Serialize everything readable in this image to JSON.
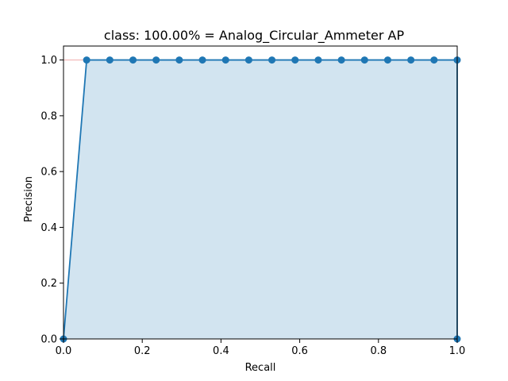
{
  "chart_data": {
    "type": "area",
    "title": "class: 100.00% = Analog_Circular_Ammeter AP",
    "xlabel": "Recall",
    "ylabel": "Precision",
    "xlim": [
      0.0,
      1.0
    ],
    "ylim": [
      0.0,
      1.05
    ],
    "xticks": [
      "0.0",
      "0.2",
      "0.4",
      "0.6",
      "0.8",
      "1.0"
    ],
    "yticks": [
      "0.0",
      "0.2",
      "0.4",
      "0.6",
      "0.8",
      "1.0"
    ],
    "grid": false,
    "series": [
      {
        "x": [
          0.0,
          0.0588,
          0.1176,
          0.1765,
          0.2353,
          0.2941,
          0.3529,
          0.4118,
          0.4706,
          0.5294,
          0.5882,
          0.6471,
          0.7059,
          0.7647,
          0.8235,
          0.8824,
          0.9412,
          1.0,
          1.0
        ],
        "y": [
          0.0,
          1.0,
          1.0,
          1.0,
          1.0,
          1.0,
          1.0,
          1.0,
          1.0,
          1.0,
          1.0,
          1.0,
          1.0,
          1.0,
          1.0,
          1.0,
          1.0,
          1.0,
          0.0
        ],
        "color": "#1f77b4"
      }
    ],
    "fill_color": "#1f77b4",
    "fill_alpha": 0.2,
    "envelope_color": "#d62728"
  }
}
